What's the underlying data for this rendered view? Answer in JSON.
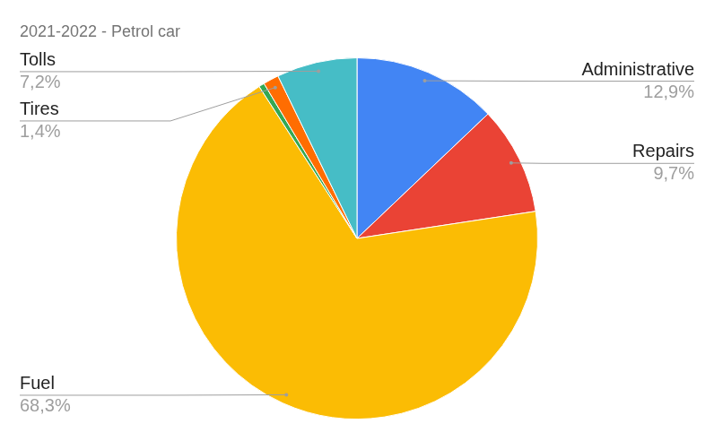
{
  "chart_data": {
    "type": "pie",
    "title": "2021-2022 - Petrol car",
    "categories": [
      "Administrative",
      "Repairs",
      "Fuel",
      null,
      "Tires",
      "Tolls"
    ],
    "values": [
      12.9,
      9.7,
      68.3,
      0.5,
      1.4,
      7.2
    ],
    "value_labels": [
      "12,9%",
      "9,7%",
      "68,3%",
      null,
      "1,4%",
      "7,2%"
    ],
    "colors": [
      "#4285f4",
      "#ea4335",
      "#fbbc04",
      "#34a853",
      "#ff6d01",
      "#46bdc6"
    ],
    "data_labels": true
  }
}
